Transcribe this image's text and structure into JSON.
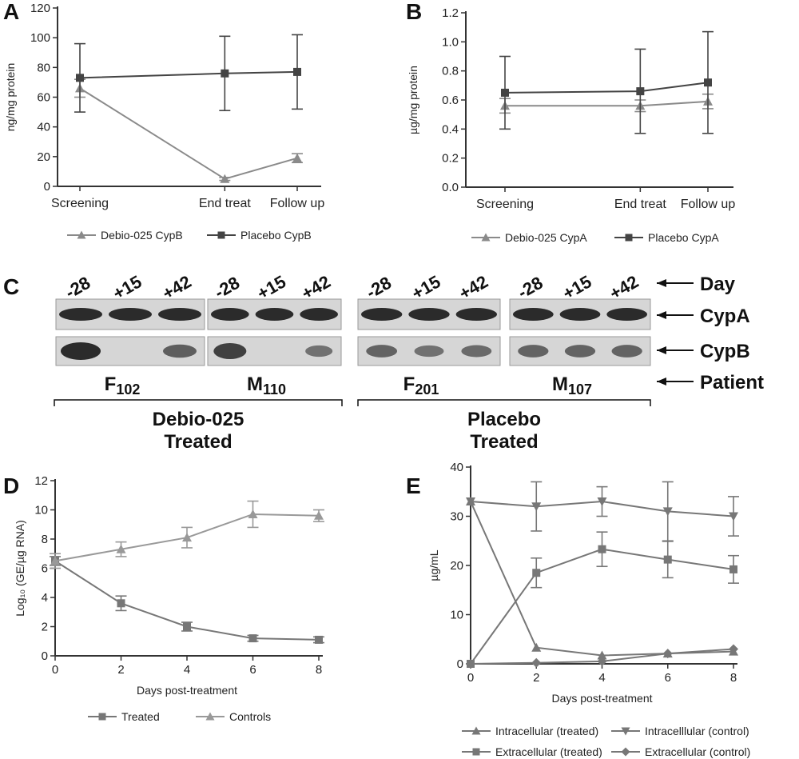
{
  "colors": {
    "dark": "#444444",
    "light": "#8a8a8a",
    "band": "#222222",
    "blot_bg": "#d6d6d6"
  },
  "chart_data": [
    {
      "panel": "A",
      "type": "line",
      "categories": [
        "Screening",
        "End treat",
        "Follow up"
      ],
      "x": [
        0,
        2,
        3
      ],
      "ylabel": "ng/mg protein",
      "ylim": [
        0,
        120
      ],
      "yticks": [
        0,
        20,
        40,
        60,
        80,
        100,
        120
      ],
      "series": [
        {
          "name": "Debio-025 CypB",
          "marker": "triangle",
          "color": "#8a8a8a",
          "values": [
            66,
            5,
            19
          ],
          "err": [
            6,
            1,
            3
          ]
        },
        {
          "name": "Placebo CypB",
          "marker": "square",
          "color": "#444444",
          "values": [
            73,
            76,
            77
          ],
          "err": [
            23,
            25,
            25
          ]
        }
      ]
    },
    {
      "panel": "B",
      "type": "line",
      "categories": [
        "Screening",
        "End treat",
        "Follow up"
      ],
      "x": [
        0,
        2,
        3
      ],
      "ylabel": "µg/mg protein",
      "ylim": [
        0,
        1.2
      ],
      "yticks": [
        "0.0",
        "0.2",
        "0.4",
        "0.6",
        "0.8",
        "1.0",
        "1.2"
      ],
      "series": [
        {
          "name": "Debio-025 CypA",
          "marker": "triangle",
          "color": "#8a8a8a",
          "values": [
            0.56,
            0.56,
            0.59
          ],
          "err": [
            0.05,
            0.04,
            0.05
          ]
        },
        {
          "name": "Placebo CypA",
          "marker": "square",
          "color": "#444444",
          "values": [
            0.65,
            0.66,
            0.72
          ],
          "err": [
            0.25,
            0.29,
            0.35
          ]
        }
      ]
    },
    {
      "panel": "D",
      "type": "line",
      "x": [
        0,
        2,
        4,
        6,
        8
      ],
      "xticks": [
        0,
        2,
        4,
        6,
        8
      ],
      "xlabel": "Days post-treatment",
      "ylabel": "Log₁₀ (GE/µg RNA)",
      "ylim": [
        0,
        12
      ],
      "yticks": [
        0,
        2,
        4,
        6,
        8,
        10,
        12
      ],
      "series": [
        {
          "name": "Treated",
          "marker": "square",
          "color": "#777777",
          "values": [
            6.5,
            3.6,
            2.0,
            1.2,
            1.1
          ],
          "err": [
            0.3,
            0.5,
            0.3,
            0.2,
            0.2
          ]
        },
        {
          "name": "Controls",
          "marker": "triangle",
          "color": "#999999",
          "values": [
            6.5,
            7.3,
            8.1,
            9.7,
            9.6
          ],
          "err": [
            0.5,
            0.5,
            0.7,
            0.9,
            0.4
          ]
        }
      ]
    },
    {
      "panel": "E",
      "type": "line",
      "x": [
        0,
        2,
        4,
        6,
        8
      ],
      "xticks": [
        0,
        2,
        4,
        6,
        8
      ],
      "xlabel": "Days post-treatment",
      "ylabel": "µg/mL",
      "ylim": [
        0,
        40
      ],
      "yticks": [
        0,
        10,
        20,
        30,
        40
      ],
      "series": [
        {
          "name": "Intracellular (treated)",
          "marker": "triangle",
          "color": "#777777",
          "values": [
            33,
            3.3,
            1.7,
            2.1,
            2.5
          ],
          "err": [
            0,
            0,
            0,
            0,
            0
          ]
        },
        {
          "name": "Intracelllular (control)",
          "marker": "triangle-down",
          "color": "#777777",
          "values": [
            33,
            32,
            33,
            31,
            30
          ],
          "err": [
            0,
            5,
            3,
            6,
            4
          ]
        },
        {
          "name": "Extracellular (treated)",
          "marker": "square",
          "color": "#777777",
          "values": [
            0,
            18.5,
            23.3,
            21.2,
            19.2
          ],
          "err": [
            0,
            3,
            3.5,
            3.7,
            2.8
          ]
        },
        {
          "name": "Extracellular (control)",
          "marker": "diamond",
          "color": "#777777",
          "values": [
            0,
            0.2,
            0.5,
            2.1,
            3.0
          ],
          "err": [
            0,
            0,
            0,
            0,
            0
          ]
        }
      ]
    }
  ],
  "panelC": {
    "panel_label": "C",
    "day_labels": [
      "-28",
      "+15",
      "+42"
    ],
    "row_labels": {
      "day": "Day",
      "cypa": "CypA",
      "cypb": "CypB",
      "patient": "Patient"
    },
    "patients": [
      {
        "letter": "F",
        "sub": "102"
      },
      {
        "letter": "M",
        "sub": "110"
      },
      {
        "letter": "F",
        "sub": "201"
      },
      {
        "letter": "M",
        "sub": "107"
      }
    ],
    "groups": [
      {
        "line1": "Debio-025",
        "line2": "Treated"
      },
      {
        "line1": "Placebo",
        "line2": "Treated"
      }
    ],
    "cypa_intensity": [
      [
        1,
        1,
        1
      ],
      [
        1,
        1,
        1
      ],
      [
        1,
        1,
        1
      ],
      [
        1,
        1,
        1
      ]
    ],
    "cypb_intensity": [
      [
        1.0,
        0.0,
        0.6
      ],
      [
        0.85,
        0.0,
        0.45
      ],
      [
        0.55,
        0.45,
        0.5
      ],
      [
        0.55,
        0.55,
        0.55
      ]
    ]
  }
}
